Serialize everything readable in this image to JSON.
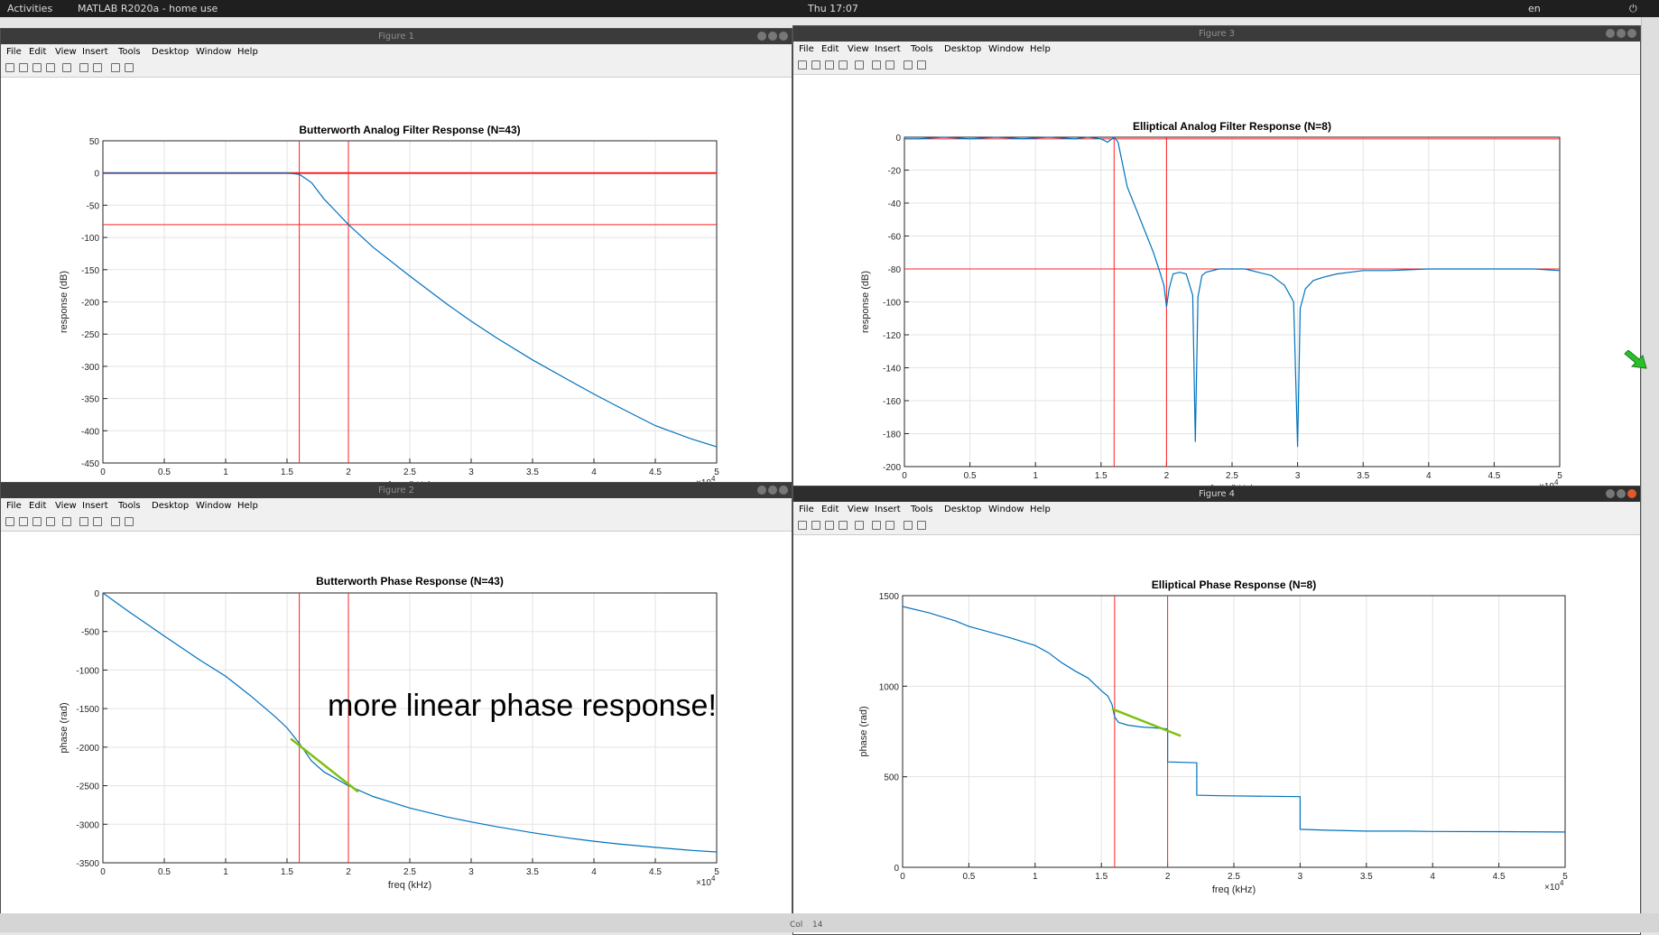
{
  "desktop": {
    "activities": "Activities",
    "app_menu": "MATLAB R2020a - home use",
    "clock": "Thu 17:07",
    "lang": "en"
  },
  "menu": [
    "File",
    "Edit",
    "View",
    "Insert",
    "Tools",
    "Desktop",
    "Window",
    "Help"
  ],
  "windows": [
    {
      "title": "Figure 1",
      "active": false
    },
    {
      "title": "Figure 3",
      "active": false
    },
    {
      "title": "Figure 2",
      "active": false
    },
    {
      "title": "Figure 4",
      "active": true
    }
  ],
  "annotation": "more linear phase response!",
  "status": {
    "col": "Col",
    "col_value": "14"
  },
  "colors": {
    "curve": "#0072bd",
    "limit": "#ff2020",
    "tangent": "#7fbf10"
  },
  "chart_data": [
    {
      "type": "line",
      "title": "Butterworth Analog Filter Response (N=43)",
      "xlabel": "freq (kHz)",
      "ylabel": "response (dB)",
      "xlim": [
        0,
        50000
      ],
      "ylim": [
        -450,
        50
      ],
      "xticks": [
        0,
        5000,
        10000,
        15000,
        20000,
        25000,
        30000,
        35000,
        40000,
        45000,
        50000
      ],
      "yticks": [
        50,
        0,
        -50,
        -100,
        -150,
        -200,
        -250,
        -300,
        -350,
        -400,
        -450
      ],
      "xexp": "4",
      "grid": true,
      "x": [
        0,
        5000,
        10000,
        15000,
        16000,
        17000,
        18000,
        19000,
        20000,
        22000,
        25000,
        28000,
        30000,
        32000,
        35000,
        38000,
        40000,
        42000,
        45000,
        48000,
        50000
      ],
      "y": [
        0,
        0,
        0,
        0,
        -2,
        -15,
        -40,
        -60,
        -80,
        -115,
        -160,
        -203,
        -230,
        -255,
        -290,
        -322,
        -343,
        -363,
        -392,
        -413,
        -425
      ],
      "hlines": [
        {
          "y": 0,
          "width": 2
        },
        {
          "y": -80,
          "width": 1
        }
      ],
      "vlines": [
        16000,
        20000
      ]
    },
    {
      "type": "line",
      "title": "Elliptical Analog Filter Response (N=8)",
      "xlabel": "freq (kHz)",
      "ylabel": "response (dB)",
      "xlim": [
        0,
        50000
      ],
      "ylim": [
        -200,
        0
      ],
      "xticks": [
        0,
        5000,
        10000,
        15000,
        20000,
        25000,
        30000,
        35000,
        40000,
        45000,
        50000
      ],
      "yticks": [
        0,
        -20,
        -40,
        -60,
        -80,
        -100,
        -120,
        -140,
        -160,
        -180,
        -200
      ],
      "xexp": "4",
      "grid": true,
      "x": [
        0,
        1000,
        3000,
        5000,
        7000,
        9000,
        11000,
        13000,
        14000,
        15000,
        15500,
        16000,
        16300,
        17000,
        18000,
        19000,
        19500,
        19800,
        20000,
        20200,
        20500,
        21000,
        21500,
        22000,
        22200,
        22400,
        22700,
        23000,
        24000,
        25000,
        26000,
        27000,
        28000,
        29000,
        29700,
        30000,
        30200,
        30600,
        31200,
        32000,
        33000,
        35000,
        37000,
        40000,
        42000,
        45000,
        48000,
        50000
      ],
      "y": [
        -1,
        -1,
        0,
        -1,
        0,
        -1,
        0,
        -1,
        0,
        -1,
        -3,
        0,
        -3,
        -30,
        -50,
        -70,
        -82,
        -90,
        -103,
        -92,
        -83,
        -82,
        -83,
        -96,
        -185,
        -97,
        -84,
        -82,
        -80,
        -80,
        -80,
        -82,
        -84,
        -90,
        -100,
        -188,
        -104,
        -92,
        -87,
        -85,
        -83,
        -81,
        -81,
        -80,
        -80,
        -80,
        -80,
        -81
      ],
      "hlines": [
        {
          "y": -1,
          "width": 1
        },
        {
          "y": -80,
          "width": 1
        }
      ],
      "vlines": [
        16000,
        20000
      ]
    },
    {
      "type": "line",
      "title": "Butterworth Phase Response (N=43)",
      "xlabel": "freq (kHz)",
      "ylabel": "phase (rad)",
      "xlim": [
        0,
        50000
      ],
      "ylim": [
        -3500,
        0
      ],
      "xticks": [
        0,
        5000,
        10000,
        15000,
        20000,
        25000,
        30000,
        35000,
        40000,
        45000,
        50000
      ],
      "yticks": [
        0,
        -500,
        -1000,
        -1500,
        -2000,
        -2500,
        -3000,
        -3500
      ],
      "xexp": "4",
      "grid": true,
      "x": [
        0,
        2000,
        5000,
        8000,
        10000,
        12000,
        14000,
        15000,
        16000,
        17000,
        18000,
        20000,
        22000,
        25000,
        28000,
        30000,
        32000,
        35000,
        38000,
        40000,
        42000,
        45000,
        48000,
        50000
      ],
      "y": [
        0,
        -230,
        -560,
        -880,
        -1080,
        -1330,
        -1600,
        -1750,
        -1950,
        -2180,
        -2320,
        -2500,
        -2640,
        -2790,
        -2905,
        -2970,
        -3030,
        -3110,
        -3180,
        -3220,
        -3255,
        -3300,
        -3340,
        -3360
      ],
      "vlines": [
        16000,
        20000
      ],
      "tangent": {
        "x": [
          15300,
          20800
        ],
        "y": [
          -1890,
          -2580
        ]
      }
    },
    {
      "type": "line",
      "title": "Elliptical Phase Response (N=8)",
      "xlabel": "freq (kHz)",
      "ylabel": "phase (rad)",
      "xlim": [
        0,
        50000
      ],
      "ylim": [
        0,
        1500
      ],
      "xticks": [
        0,
        5000,
        10000,
        15000,
        20000,
        25000,
        30000,
        35000,
        40000,
        45000,
        50000
      ],
      "yticks": [
        0,
        500,
        1000,
        1500
      ],
      "xexp": "4",
      "grid": true,
      "x": [
        0,
        2000,
        4000,
        5000,
        6000,
        8000,
        10000,
        11000,
        12000,
        13000,
        14000,
        14500,
        15000,
        15500,
        15800,
        16000,
        16300,
        17000,
        18000,
        19000,
        19900,
        20000,
        20000,
        22200,
        22200,
        24000,
        30000,
        30000,
        32000,
        35000,
        38000,
        40000,
        45000,
        50000
      ],
      "y": [
        1440,
        1405,
        1360,
        1330,
        1310,
        1270,
        1225,
        1185,
        1130,
        1085,
        1045,
        1010,
        975,
        945,
        900,
        830,
        800,
        785,
        775,
        770,
        765,
        760,
        582,
        577,
        398,
        395,
        390,
        210,
        205,
        200,
        200,
        198,
        197,
        195
      ],
      "vlines": [
        16000,
        20000
      ],
      "tangent": {
        "x": [
          15800,
          21000
        ],
        "y": [
          875,
          725
        ]
      }
    }
  ]
}
